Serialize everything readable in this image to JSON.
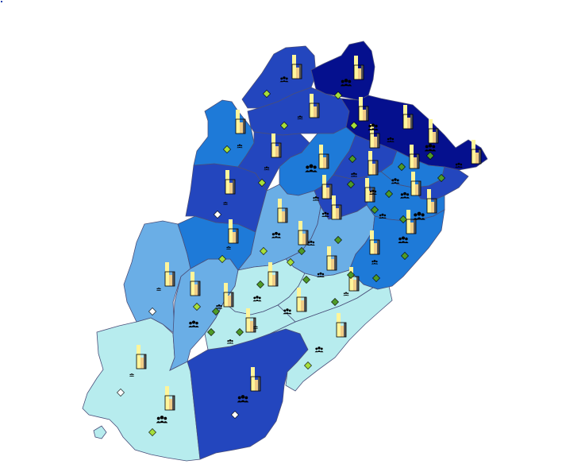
{
  "map": {
    "classes": [
      {
        "id": "c1",
        "color": "#b7ecee"
      },
      {
        "id": "c2",
        "color": "#6aaee6"
      },
      {
        "id": "c3",
        "color": "#1e7ad8"
      },
      {
        "id": "c4",
        "color": "#2346be"
      },
      {
        "id": "c5",
        "color": "#05108e"
      }
    ],
    "symbols": {
      "bar_light": "#fff59a",
      "bar_tan": "#f0cc86",
      "bar_dark": "#555555",
      "diamond_colors": {
        "white": "#ffffff",
        "lime": "#a6de3b",
        "green": "#4e9a28"
      },
      "people_icon": "people-icon",
      "bar_icon": "bar-chart-icon",
      "diamond_icon": "diamond-marker-icon"
    }
  }
}
